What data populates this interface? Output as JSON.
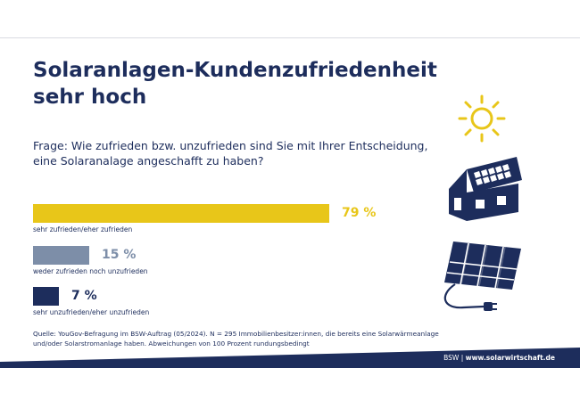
{
  "header": {
    "title_lines": [
      "Solaranlagen-Kundenzufriedenheit",
      "sehr hoch"
    ],
    "question_lines": [
      "Frage: Wie zufrieden bzw. unzufrieden sind Sie mit Ihrer Entscheidung,",
      "eine Solaranalage angeschafft zu haben?"
    ]
  },
  "chart_data": {
    "type": "bar",
    "orientation": "horizontal",
    "categories": [
      "sehr zufrieden/eher zufrieden",
      "weder zufrieden noch unzufrieden",
      "sehr unzufrieden/eher unzufrieden"
    ],
    "values": [
      79,
      15,
      7
    ],
    "value_labels": [
      "79 %",
      "15 %",
      "7 %"
    ],
    "colors": [
      "#e8c619",
      "#7d8ea8",
      "#1d2d5c"
    ],
    "xlim": [
      0,
      100
    ],
    "grid": false,
    "legend": "none"
  },
  "source_lines": [
    "Quelle: YouGov-Befragung im BSW-Auftrag (05/2024). N = 295 Immobilienbesitzer:innen, die bereits eine Solarwärmeanlage",
    "und/oder Solarstromanlage haben. Abweichungen von 100 Prozent rundungsbedingt"
  ],
  "footer": {
    "org": "BSW",
    "separator": "|",
    "url": "www.solarwirtschaft.de"
  },
  "colors": {
    "navy": "#1d2d5c",
    "yellow": "#e8c619",
    "gray": "#7d8ea8"
  },
  "icons": [
    "sun-icon",
    "solar-house-icon",
    "solar-panel-icon"
  ]
}
